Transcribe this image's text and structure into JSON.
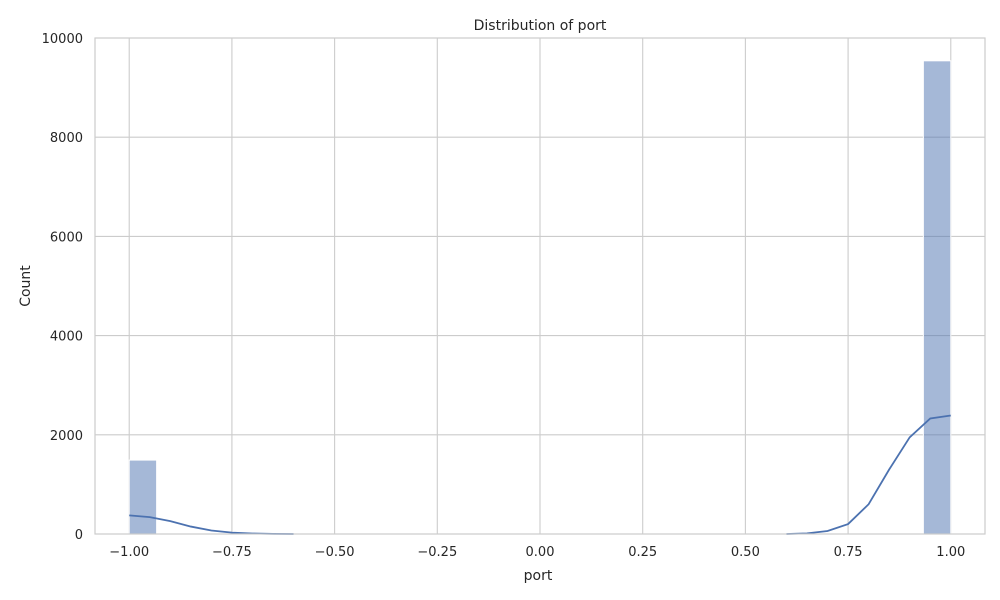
{
  "chart_data": {
    "type": "bar",
    "title": "Distribution of port",
    "xlabel": "port",
    "ylabel": "Count",
    "xlim": [
      -1.0833,
      1.0833
    ],
    "ylim": [
      0,
      10000
    ],
    "x_ticks": [
      "−1.00",
      "−0.75",
      "−0.50",
      "−0.25",
      "0.00",
      "0.25",
      "0.50",
      "0.75",
      "1.00"
    ],
    "x_tick_values": [
      -1.0,
      -0.75,
      -0.5,
      -0.25,
      0.0,
      0.25,
      0.5,
      0.75,
      1.0
    ],
    "y_ticks": [
      "0",
      "2000",
      "4000",
      "6000",
      "8000",
      "10000"
    ],
    "y_tick_values": [
      0,
      2000,
      4000,
      6000,
      8000,
      10000
    ],
    "grid": true,
    "series": [
      {
        "kind": "histogram",
        "bins": [
          {
            "x0": -1.0,
            "x1": -0.9333,
            "count": 1490
          },
          {
            "x0": 0.9333,
            "x1": 1.0,
            "count": 9540
          }
        ]
      },
      {
        "kind": "kde",
        "x": [
          -1.0,
          -0.95,
          -0.9,
          -0.85,
          -0.8,
          -0.75,
          -0.7,
          -0.65,
          -0.6,
          0.6,
          0.65,
          0.7,
          0.75,
          0.8,
          0.85,
          0.9,
          0.95,
          1.0
        ],
        "y": [
          375,
          340,
          260,
          150,
          70,
          28,
          10,
          3,
          0,
          0,
          12,
          60,
          200,
          600,
          1300,
          1950,
          2330,
          2390
        ]
      }
    ],
    "colors": {
      "bar": "#4c72b0",
      "line": "#4c72b0",
      "grid": "#cccccc"
    }
  }
}
